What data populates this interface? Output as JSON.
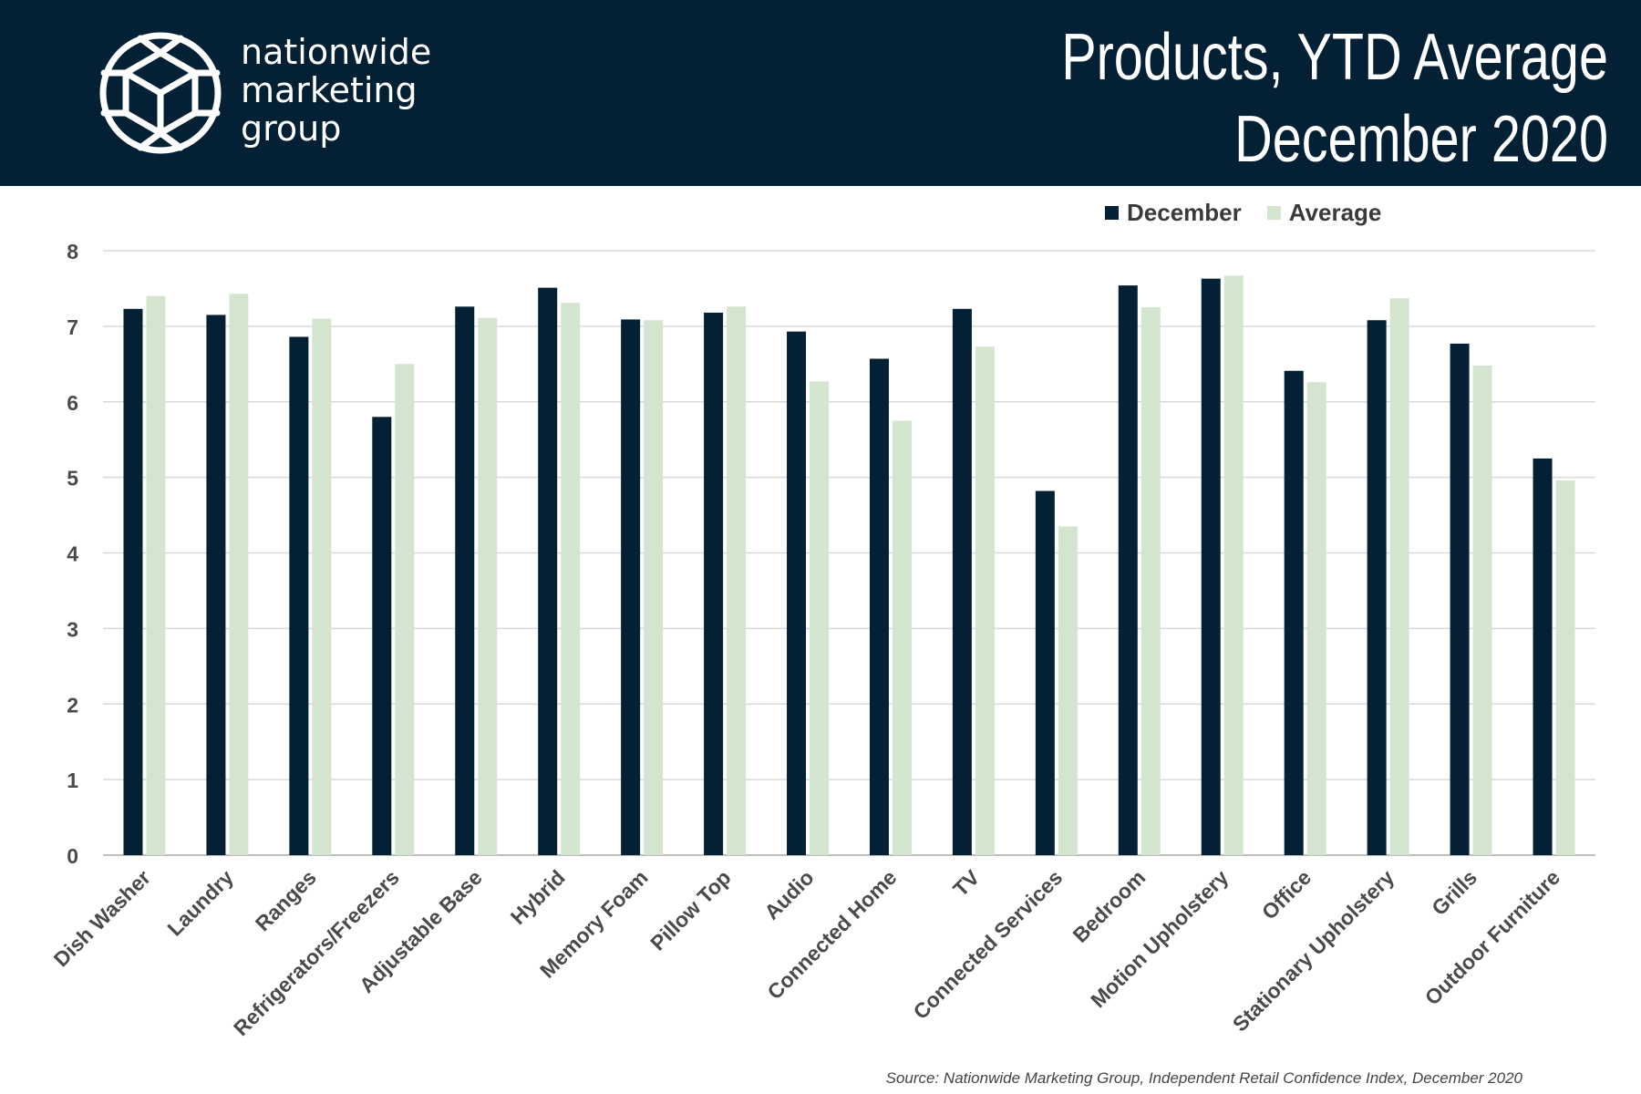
{
  "header": {
    "logo_lines": [
      "nationwide",
      "marketing",
      "group"
    ],
    "title_line1": "Products, YTD Average",
    "title_line2": "December 2020",
    "background_color": "#032034"
  },
  "chart_data": {
    "type": "bar",
    "categories": [
      "Dish Washer",
      "Laundry",
      "Ranges",
      "Refrigerators/Freezers",
      "Adjustable Base",
      "Hybrid",
      "Memory Foam",
      "Pillow Top",
      "Audio",
      "Connected Home",
      "TV",
      "Connected Services",
      "Bedroom",
      "Motion Upholstery",
      "Office",
      "Stationary Upholstery",
      "Grills",
      "Outdoor Furniture"
    ],
    "series": [
      {
        "name": "December",
        "color": "#032034",
        "values": [
          7.23,
          7.15,
          6.86,
          5.8,
          7.26,
          7.51,
          7.09,
          7.18,
          6.93,
          6.57,
          7.23,
          4.82,
          7.54,
          7.63,
          6.41,
          7.08,
          6.77,
          5.25
        ]
      },
      {
        "name": "Average",
        "color": "#d3e5cf",
        "values": [
          7.4,
          7.43,
          7.1,
          6.5,
          7.11,
          7.31,
          7.08,
          7.26,
          6.27,
          5.75,
          6.73,
          4.35,
          7.25,
          7.67,
          6.26,
          7.37,
          6.48,
          4.96
        ]
      }
    ],
    "yticks": [
      "0",
      "1",
      "2",
      "3",
      "4",
      "5",
      "6",
      "7",
      "8"
    ],
    "ylim": [
      0,
      8
    ],
    "grid": true,
    "legend_placement": "top-right",
    "source": "Source: Nationwide Marketing Group, Independent Retail Confidence Index, December 2020"
  }
}
